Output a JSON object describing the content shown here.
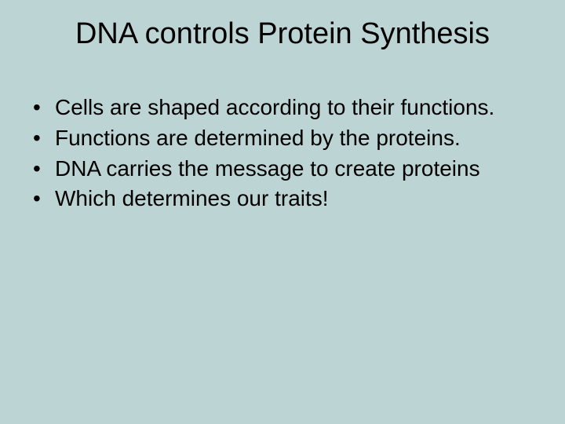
{
  "slide": {
    "background_color": "#bdd4d4",
    "text_color": "#000000",
    "title": "DNA controls Protein Synthesis",
    "title_fontsize": 38,
    "bullet_fontsize": 28,
    "bullets": [
      "Cells are shaped according to their functions.",
      "Functions are determined by the proteins.",
      "DNA carries the message to create proteins",
      "Which determines our traits!"
    ]
  }
}
